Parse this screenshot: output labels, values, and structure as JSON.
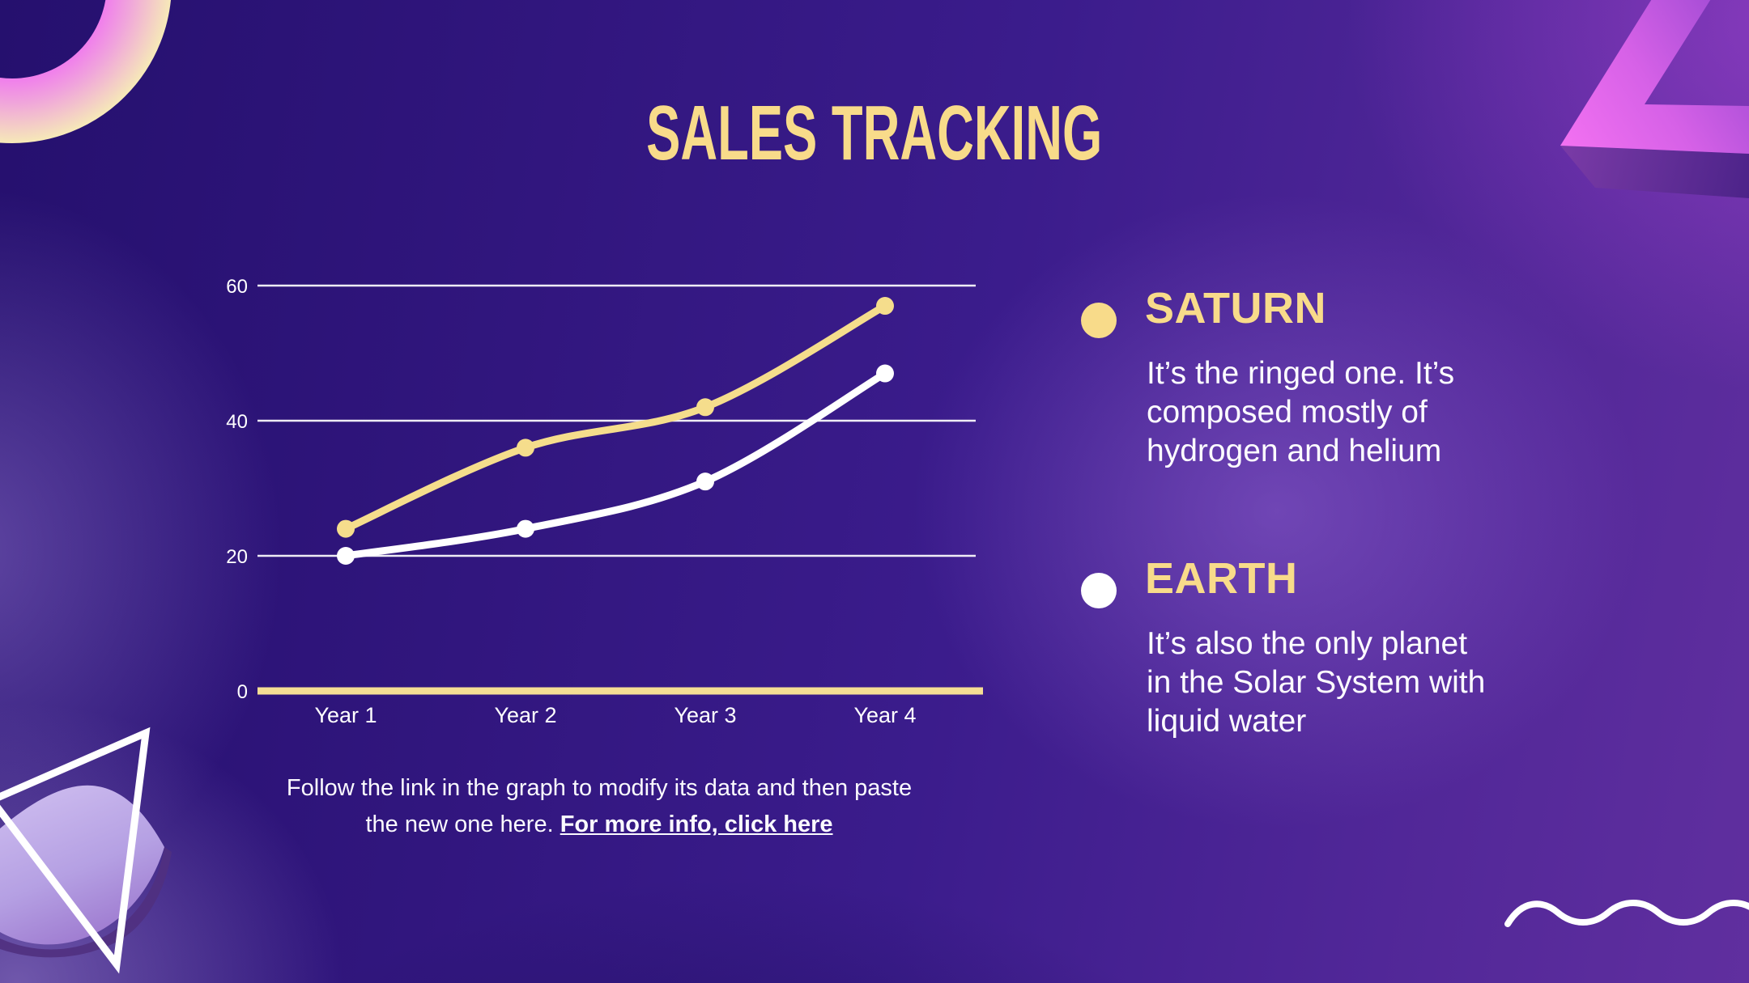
{
  "slide": {
    "title": "SALES TRACKING"
  },
  "colors": {
    "accent_yellow": "#F8DB8A",
    "saturn_line": "#F5DD8C",
    "earth_line": "#FFFFFF",
    "baseline_yellow": "#F5DE94",
    "background_base": "#3B1C8C"
  },
  "chart_data": {
    "type": "line",
    "title": "",
    "xlabel": "",
    "ylabel": "",
    "categories": [
      "Year 1",
      "Year 2",
      "Year 3",
      "Year 4"
    ],
    "series": [
      {
        "name": "SATURN",
        "color": "#F5DD8C",
        "values": [
          24,
          36,
          42,
          57
        ]
      },
      {
        "name": "EARTH",
        "color": "#FFFFFF",
        "values": [
          20,
          24,
          31,
          47
        ]
      }
    ],
    "yticks": [
      60,
      40,
      20,
      0
    ],
    "ylim": [
      0,
      60
    ],
    "grid": true,
    "legend_position": "right"
  },
  "caption": {
    "line1": "Follow the link in the graph to modify its data and then paste",
    "line2_prefix": "the new one here. ",
    "link_text": "For more info, click here"
  },
  "legend": {
    "items": [
      {
        "name": "SATURN",
        "description": "It’s the ringed one. It’s composed mostly of hydrogen and helium",
        "bullet_color": "#F8DB8A"
      },
      {
        "name": "EARTH",
        "description": "It’s also the only planet in the Solar System with liquid water",
        "bullet_color": "#FFFFFF"
      }
    ]
  }
}
